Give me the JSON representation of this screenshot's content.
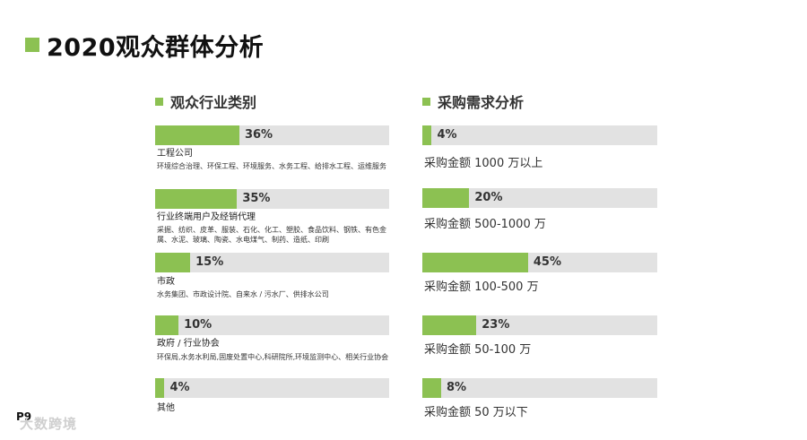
{
  "page": {
    "title": "2020观众群体分析",
    "page_number": "P9",
    "watermark": "大数跨境"
  },
  "chart_data": [
    {
      "type": "bar",
      "title": "观众行业类别",
      "unit": "%",
      "xlim": [
        0,
        100
      ],
      "categories": [
        "工程公司",
        "行业终端用户及经销代理",
        "市政",
        "政府 / 行业协会",
        "其他"
      ],
      "descriptions": [
        "环境综合治理、环保工程、环境服务、水务工程、给排水工程、运维服务",
        "采掘、纺织、皮革、服装、石化、化工、塑胶、食品饮料、钢铁、有色金属、水泥、玻璃、陶瓷、水电煤气、制药、造纸、印刷",
        "水务集团、市政设计院、自来水 / 污水厂、供排水公司",
        "环保局,水务水利局,固废处置中心,科研院所,环境监测中心、相关行业协会",
        ""
      ],
      "values": [
        36,
        35,
        15,
        10,
        4
      ],
      "value_labels": [
        "36%",
        "35%",
        "15%",
        "10%",
        "4%"
      ]
    },
    {
      "type": "bar",
      "title": "采购需求分析",
      "unit": "%",
      "xlim": [
        0,
        100
      ],
      "categories": [
        "采购金额 1000 万以上",
        "采购金额 500-1000 万",
        "采购金额 100-500 万",
        "采购金额 50-100 万",
        "采购金额 50 万以下"
      ],
      "values": [
        4,
        20,
        45,
        23,
        8
      ],
      "value_labels": [
        "4%",
        "20%",
        "45%",
        "23%",
        "8%"
      ]
    }
  ],
  "colors": {
    "accent": "#8cc152",
    "track": "#e2e2e2",
    "text": "#333333"
  }
}
